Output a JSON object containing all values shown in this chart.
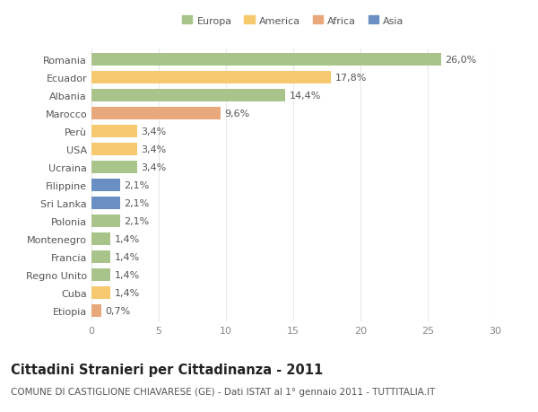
{
  "categories": [
    "Romania",
    "Ecuador",
    "Albania",
    "Marocco",
    "Perù",
    "USA",
    "Ucraina",
    "Filippine",
    "Sri Lanka",
    "Polonia",
    "Montenegro",
    "Francia",
    "Regno Unito",
    "Cuba",
    "Etiopia"
  ],
  "values": [
    26.0,
    17.8,
    14.4,
    9.6,
    3.4,
    3.4,
    3.4,
    2.1,
    2.1,
    2.1,
    1.4,
    1.4,
    1.4,
    1.4,
    0.7
  ],
  "labels": [
    "26,0%",
    "17,8%",
    "14,4%",
    "9,6%",
    "3,4%",
    "3,4%",
    "3,4%",
    "2,1%",
    "2,1%",
    "2,1%",
    "1,4%",
    "1,4%",
    "1,4%",
    "1,4%",
    "0,7%"
  ],
  "colors": [
    "#a8c48a",
    "#f7c96e",
    "#a8c48a",
    "#e8a87c",
    "#f7c96e",
    "#f7c96e",
    "#a8c48a",
    "#6a8fc2",
    "#6a8fc2",
    "#a8c48a",
    "#a8c48a",
    "#a8c48a",
    "#a8c48a",
    "#f7c96e",
    "#e8a87c"
  ],
  "legend_labels": [
    "Europa",
    "America",
    "Africa",
    "Asia"
  ],
  "legend_colors": [
    "#a8c48a",
    "#f7c96e",
    "#e8a87c",
    "#6a8fc2"
  ],
  "title": "Cittadini Stranieri per Cittadinanza - 2011",
  "subtitle": "COMUNE DI CASTIGLIONE CHIAVARESE (GE) - Dati ISTAT al 1° gennaio 2011 - TUTTITALIA.IT",
  "xlim": [
    0,
    30
  ],
  "xticks": [
    0,
    5,
    10,
    15,
    20,
    25,
    30
  ],
  "background_color": "#ffffff",
  "grid_color": "#e8e8e8",
  "bar_height": 0.68,
  "label_fontsize": 8.0,
  "tick_fontsize": 8.0,
  "title_fontsize": 10.5,
  "subtitle_fontsize": 7.5
}
